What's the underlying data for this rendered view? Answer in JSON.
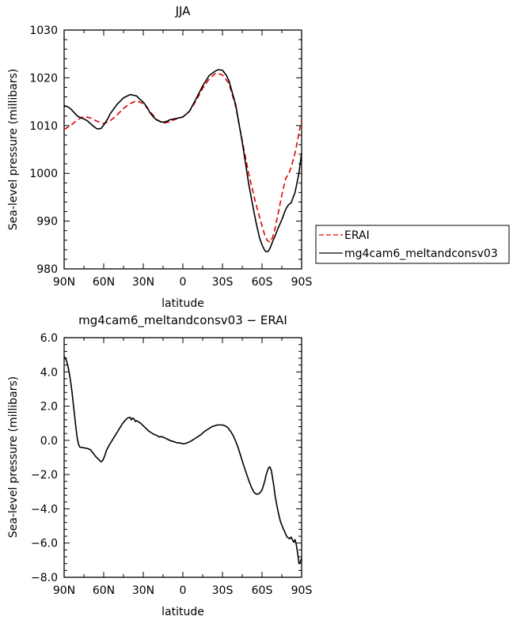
{
  "chart_data": [
    {
      "type": "line",
      "title": "JJA",
      "xlabel": "latitude",
      "ylabel": "Sea-level pressure (millibars)",
      "xlim": [
        -90,
        90
      ],
      "ylim": [
        980,
        1030
      ],
      "x_tick_values": [
        -90,
        -60,
        -30,
        0,
        30,
        60,
        90
      ],
      "x_tick_labels": [
        "90N",
        "60N",
        "30N",
        "0",
        "30S",
        "60S",
        "90S"
      ],
      "y_tick_values": [
        980,
        990,
        1000,
        1010,
        1020,
        1030
      ],
      "y_tick_labels": [
        "980",
        "990",
        "1000",
        "1010",
        "1020",
        "1030"
      ],
      "grid": false,
      "legend_position": "outside-right",
      "series": [
        {
          "name": "ERAI",
          "color": "#e00000",
          "dash": true,
          "x": [
            -90,
            -85,
            -80,
            -75,
            -70,
            -65,
            -60,
            -55,
            -50,
            -45,
            -40,
            -35,
            -30,
            -25,
            -20,
            -15,
            -10,
            -5,
            0,
            5,
            10,
            15,
            20,
            25,
            30,
            35,
            40,
            45,
            50,
            55,
            60,
            62,
            64,
            66,
            68,
            70,
            72,
            75,
            78,
            80,
            82,
            85,
            88,
            90
          ],
          "y": [
            1009.2,
            1010,
            1011.2,
            1011.9,
            1011.6,
            1010.9,
            1010.4,
            1011,
            1012.2,
            1013.6,
            1014.6,
            1015.2,
            1014.6,
            1013,
            1011.3,
            1010.5,
            1010.8,
            1011.4,
            1011.8,
            1013,
            1015.2,
            1017.8,
            1019.8,
            1021,
            1020.6,
            1018.8,
            1014,
            1006.8,
            999.8,
            994,
            989,
            987.1,
            985.9,
            985.6,
            986.6,
            988.6,
            991.3,
            995.5,
            999,
            999.8,
            1001.2,
            1004.2,
            1008.5,
            1011.3
          ]
        },
        {
          "name": "mg4cam6_meltandconsv03",
          "color": "#000000",
          "dash": false,
          "x": [
            -90,
            -87,
            -85,
            -82,
            -80,
            -77,
            -75,
            -72,
            -70,
            -67,
            -65,
            -62,
            -60,
            -57,
            -55,
            -50,
            -45,
            -40,
            -35,
            -33,
            -30,
            -27,
            -25,
            -22,
            -20,
            -17,
            -15,
            -12,
            -10,
            -5,
            0,
            5,
            10,
            15,
            20,
            25,
            27,
            30,
            33,
            35,
            40,
            45,
            50,
            55,
            58,
            60,
            62,
            63,
            64,
            65,
            66,
            67,
            68,
            70,
            72,
            75,
            78,
            80,
            82,
            85,
            88,
            90
          ],
          "y": [
            1014.2,
            1013.9,
            1013.5,
            1012.6,
            1012,
            1011.6,
            1011.4,
            1010.9,
            1010.4,
            1009.7,
            1009.3,
            1009.4,
            1010.1,
            1011.4,
            1012.5,
            1014.4,
            1015.8,
            1016.5,
            1016.2,
            1015.6,
            1014.9,
            1013.8,
            1012.7,
            1011.7,
            1011.2,
            1010.8,
            1010.7,
            1010.9,
            1011.2,
            1011.5,
            1011.8,
            1013,
            1015.6,
            1018.3,
            1020.5,
            1021.5,
            1021.7,
            1021.6,
            1020.5,
            1019.3,
            1014.4,
            1006.5,
            997.6,
            990.3,
            986.6,
            985,
            983.9,
            983.6,
            983.6,
            983.8,
            984.3,
            985,
            985.7,
            987,
            988.4,
            990.3,
            992.5,
            993.4,
            993.8,
            996,
            1000.1,
            1004.3
          ]
        }
      ]
    },
    {
      "type": "line",
      "title": "mg4cam6_meltandconsv03 − ERAI",
      "xlabel": "latitude",
      "ylabel": "Sea-level pressure (millibars)",
      "xlim": [
        -90,
        90
      ],
      "ylim": [
        -8,
        6
      ],
      "x_tick_values": [
        -90,
        -60,
        -30,
        0,
        30,
        60,
        90
      ],
      "x_tick_labels": [
        "90N",
        "60N",
        "30N",
        "0",
        "30S",
        "60S",
        "90S"
      ],
      "y_tick_values": [
        -8,
        -6,
        -4,
        -2,
        0,
        2,
        4,
        6
      ],
      "y_tick_labels": [
        "−8.0",
        "−6.0",
        "−4.0",
        "−2.0",
        "0.0",
        "2.0",
        "4.0",
        "6.0"
      ],
      "grid": false,
      "series": [
        {
          "color": "#000000",
          "dash": false,
          "x": [
            -90,
            -89,
            -88,
            -87,
            -86,
            -85,
            -84,
            -83,
            -82,
            -81,
            -80,
            -79,
            -78,
            -76,
            -74,
            -72,
            -70,
            -68,
            -66,
            -64,
            -62,
            -61,
            -60,
            -59,
            -58,
            -56,
            -54,
            -52,
            -50,
            -48,
            -46,
            -44,
            -42,
            -40,
            -39,
            -38,
            -37,
            -36,
            -35,
            -34,
            -32,
            -30,
            -28,
            -26,
            -24,
            -22,
            -20,
            -18,
            -16,
            -14,
            -12,
            -10,
            -8,
            -6,
            -4,
            -2,
            0,
            2,
            4,
            6,
            8,
            10,
            12,
            14,
            16,
            18,
            20,
            22,
            24,
            26,
            28,
            30,
            32,
            34,
            36,
            38,
            40,
            42,
            44,
            46,
            48,
            50,
            52,
            54,
            56,
            58,
            60,
            62,
            63,
            64,
            65,
            66,
            67,
            68,
            69,
            70,
            71,
            72,
            73,
            74,
            75,
            76,
            77,
            78,
            79,
            80,
            81,
            82,
            83,
            84,
            85,
            86,
            87,
            88,
            89,
            90
          ],
          "y": [
            4.9,
            4.8,
            4.6,
            4.3,
            3.9,
            3.4,
            2.8,
            2.1,
            1.4,
            0.7,
            0.1,
            -0.25,
            -0.4,
            -0.42,
            -0.45,
            -0.48,
            -0.55,
            -0.75,
            -0.95,
            -1.1,
            -1.25,
            -1.2,
            -1.05,
            -0.85,
            -0.6,
            -0.3,
            -0.05,
            0.2,
            0.45,
            0.7,
            0.95,
            1.15,
            1.3,
            1.35,
            1.2,
            1.3,
            1.25,
            1.1,
            1.15,
            1.1,
            1.0,
            0.85,
            0.7,
            0.55,
            0.45,
            0.35,
            0.3,
            0.2,
            0.22,
            0.15,
            0.08,
            0.0,
            -0.05,
            -0.1,
            -0.15,
            -0.15,
            -0.2,
            -0.18,
            -0.12,
            -0.05,
            0.05,
            0.15,
            0.25,
            0.35,
            0.5,
            0.6,
            0.7,
            0.8,
            0.85,
            0.9,
            0.9,
            0.9,
            0.85,
            0.75,
            0.55,
            0.3,
            -0.05,
            -0.45,
            -0.95,
            -1.45,
            -1.9,
            -2.35,
            -2.75,
            -3.05,
            -3.15,
            -3.1,
            -2.9,
            -2.4,
            -2.05,
            -1.8,
            -1.6,
            -1.55,
            -1.75,
            -2.2,
            -2.7,
            -3.3,
            -3.7,
            -4.1,
            -4.45,
            -4.75,
            -4.95,
            -5.15,
            -5.3,
            -5.5,
            -5.65,
            -5.7,
            -5.75,
            -5.65,
            -5.8,
            -5.95,
            -5.8,
            -6.1,
            -6.6,
            -7.2,
            -7.1,
            -6.9
          ]
        }
      ]
    }
  ]
}
